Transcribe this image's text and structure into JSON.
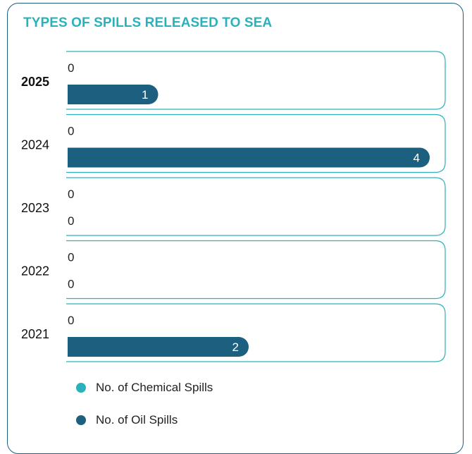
{
  "chart_data": {
    "type": "bar",
    "orientation": "horizontal",
    "title": "TYPES OF SPILLS RELEASED TO SEA",
    "categories": [
      "2025",
      "2024",
      "2023",
      "2022",
      "2021"
    ],
    "highlight_category": "2025",
    "series": [
      {
        "name": "No. of Chemical Spills",
        "color": "#2ab2bc",
        "values": [
          0,
          0,
          0,
          0,
          0
        ]
      },
      {
        "name": "No. of Oil Spills",
        "color": "#1d5f7e",
        "values": [
          1,
          4,
          0,
          0,
          2
        ]
      }
    ],
    "xlim": [
      0,
      4
    ],
    "data_labels": true,
    "grid": false,
    "legend_position": "bottom-left"
  }
}
